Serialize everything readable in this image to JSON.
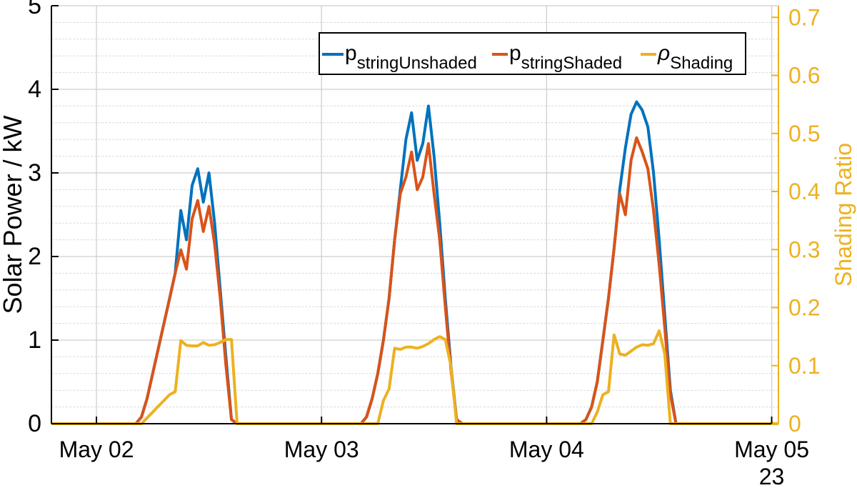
{
  "chart_data": {
    "type": "line",
    "title": "",
    "xlabel": "",
    "ylabel": "Solar Power / kW",
    "y2label": "Shading Ratio",
    "x_ticks": [
      "May 02",
      "May 03",
      "May 04",
      "May 05"
    ],
    "x_secondary_label": "23",
    "ylim": [
      0,
      5
    ],
    "y_ticks": [
      "0",
      "1",
      "2",
      "3",
      "4",
      "5"
    ],
    "y2lim": [
      0,
      0.72
    ],
    "y2_ticks": [
      "0",
      "0.1",
      "0.2",
      "0.3",
      "0.4",
      "0.5",
      "0.6",
      "0.7"
    ],
    "grid": true,
    "legend_position": "top-right",
    "colors": {
      "unshaded": "#0072BD",
      "shaded": "#D95319",
      "shading": "#EDB120",
      "right_axis": "#EDB120",
      "text": "#000000"
    },
    "series": [
      {
        "name": "p",
        "name_sub": "stringUnshaded",
        "axis": "left",
        "color": "#0072BD",
        "points": [
          [
            1.8,
            0
          ],
          [
            2.175,
            0
          ],
          [
            2.2,
            0.08
          ],
          [
            2.225,
            0.3
          ],
          [
            2.25,
            0.6
          ],
          [
            2.275,
            0.9
          ],
          [
            2.3,
            1.2
          ],
          [
            2.325,
            1.5
          ],
          [
            2.35,
            1.8
          ],
          [
            2.375,
            2.55
          ],
          [
            2.4,
            2.2
          ],
          [
            2.425,
            2.85
          ],
          [
            2.45,
            3.05
          ],
          [
            2.475,
            2.65
          ],
          [
            2.5,
            3.0
          ],
          [
            2.525,
            2.4
          ],
          [
            2.55,
            1.6
          ],
          [
            2.575,
            0.8
          ],
          [
            2.6,
            0.05
          ],
          [
            2.625,
            0
          ],
          [
            3.0,
            0
          ],
          [
            3.175,
            0
          ],
          [
            3.2,
            0.08
          ],
          [
            3.225,
            0.3
          ],
          [
            3.25,
            0.6
          ],
          [
            3.275,
            1.0
          ],
          [
            3.3,
            1.5
          ],
          [
            3.325,
            2.2
          ],
          [
            3.35,
            2.8
          ],
          [
            3.375,
            3.4
          ],
          [
            3.4,
            3.72
          ],
          [
            3.425,
            3.15
          ],
          [
            3.45,
            3.35
          ],
          [
            3.475,
            3.8
          ],
          [
            3.5,
            3.2
          ],
          [
            3.525,
            2.4
          ],
          [
            3.55,
            1.5
          ],
          [
            3.575,
            0.7
          ],
          [
            3.6,
            0.05
          ],
          [
            3.625,
            0
          ],
          [
            4.0,
            0
          ],
          [
            4.15,
            0
          ],
          [
            4.175,
            0.05
          ],
          [
            4.2,
            0.2
          ],
          [
            4.225,
            0.5
          ],
          [
            4.25,
            1.0
          ],
          [
            4.275,
            1.5
          ],
          [
            4.3,
            2.1
          ],
          [
            4.325,
            2.8
          ],
          [
            4.35,
            3.3
          ],
          [
            4.375,
            3.7
          ],
          [
            4.4,
            3.85
          ],
          [
            4.425,
            3.75
          ],
          [
            4.45,
            3.55
          ],
          [
            4.475,
            3.0
          ],
          [
            4.5,
            2.2
          ],
          [
            4.525,
            1.3
          ],
          [
            4.55,
            0.4
          ],
          [
            4.575,
            0
          ],
          [
            5.03,
            0
          ]
        ]
      },
      {
        "name": "p",
        "name_sub": "stringShaded",
        "axis": "left",
        "color": "#D95319",
        "points": [
          [
            1.8,
            0
          ],
          [
            2.175,
            0
          ],
          [
            2.2,
            0.08
          ],
          [
            2.225,
            0.3
          ],
          [
            2.25,
            0.6
          ],
          [
            2.275,
            0.9
          ],
          [
            2.3,
            1.2
          ],
          [
            2.325,
            1.5
          ],
          [
            2.35,
            1.8
          ],
          [
            2.375,
            2.08
          ],
          [
            2.4,
            1.85
          ],
          [
            2.425,
            2.45
          ],
          [
            2.45,
            2.67
          ],
          [
            2.475,
            2.3
          ],
          [
            2.5,
            2.6
          ],
          [
            2.525,
            2.15
          ],
          [
            2.55,
            1.5
          ],
          [
            2.575,
            0.7
          ],
          [
            2.6,
            0.05
          ],
          [
            2.625,
            0
          ],
          [
            3.0,
            0
          ],
          [
            3.175,
            0
          ],
          [
            3.2,
            0.08
          ],
          [
            3.225,
            0.3
          ],
          [
            3.25,
            0.6
          ],
          [
            3.275,
            1.0
          ],
          [
            3.3,
            1.5
          ],
          [
            3.325,
            2.2
          ],
          [
            3.35,
            2.75
          ],
          [
            3.375,
            2.95
          ],
          [
            3.4,
            3.25
          ],
          [
            3.425,
            2.8
          ],
          [
            3.45,
            2.95
          ],
          [
            3.475,
            3.35
          ],
          [
            3.5,
            2.75
          ],
          [
            3.525,
            2.2
          ],
          [
            3.55,
            1.4
          ],
          [
            3.575,
            0.65
          ],
          [
            3.6,
            0.05
          ],
          [
            3.625,
            0
          ],
          [
            4.0,
            0
          ],
          [
            4.15,
            0
          ],
          [
            4.175,
            0.05
          ],
          [
            4.2,
            0.2
          ],
          [
            4.225,
            0.5
          ],
          [
            4.25,
            1.0
          ],
          [
            4.275,
            1.5
          ],
          [
            4.3,
            2.1
          ],
          [
            4.325,
            2.75
          ],
          [
            4.35,
            2.5
          ],
          [
            4.375,
            3.15
          ],
          [
            4.4,
            3.42
          ],
          [
            4.425,
            3.25
          ],
          [
            4.45,
            3.05
          ],
          [
            4.475,
            2.55
          ],
          [
            4.5,
            1.9
          ],
          [
            4.525,
            1.15
          ],
          [
            4.55,
            0.35
          ],
          [
            4.575,
            0
          ],
          [
            5.03,
            0
          ]
        ]
      },
      {
        "name": "ρ",
        "name_sub": "Shading",
        "axis": "right",
        "color": "#EDB120",
        "points": [
          [
            1.8,
            0
          ],
          [
            2.2,
            0
          ],
          [
            2.225,
            0.01
          ],
          [
            2.25,
            0.02
          ],
          [
            2.275,
            0.03
          ],
          [
            2.3,
            0.04
          ],
          [
            2.325,
            0.05
          ],
          [
            2.35,
            0.055
          ],
          [
            2.375,
            0.143
          ],
          [
            2.4,
            0.135
          ],
          [
            2.425,
            0.134
          ],
          [
            2.45,
            0.134
          ],
          [
            2.475,
            0.14
          ],
          [
            2.5,
            0.135
          ],
          [
            2.525,
            0.136
          ],
          [
            2.55,
            0.14
          ],
          [
            2.575,
            0.145
          ],
          [
            2.6,
            0.145
          ],
          [
            2.625,
            0
          ],
          [
            3.25,
            0
          ],
          [
            3.275,
            0.04
          ],
          [
            3.3,
            0.06
          ],
          [
            3.325,
            0.13
          ],
          [
            3.35,
            0.128
          ],
          [
            3.375,
            0.132
          ],
          [
            3.4,
            0.132
          ],
          [
            3.425,
            0.13
          ],
          [
            3.45,
            0.133
          ],
          [
            3.475,
            0.138
          ],
          [
            3.5,
            0.145
          ],
          [
            3.525,
            0.15
          ],
          [
            3.55,
            0.145
          ],
          [
            3.575,
            0.1
          ],
          [
            3.6,
            0
          ],
          [
            4.2,
            0
          ],
          [
            4.225,
            0.02
          ],
          [
            4.25,
            0.05
          ],
          [
            4.275,
            0.055
          ],
          [
            4.3,
            0.153
          ],
          [
            4.325,
            0.12
          ],
          [
            4.35,
            0.118
          ],
          [
            4.375,
            0.125
          ],
          [
            4.4,
            0.132
          ],
          [
            4.425,
            0.136
          ],
          [
            4.45,
            0.135
          ],
          [
            4.475,
            0.138
          ],
          [
            4.5,
            0.16
          ],
          [
            4.525,
            0.12
          ],
          [
            4.55,
            0
          ],
          [
            5.03,
            0
          ]
        ]
      }
    ]
  }
}
